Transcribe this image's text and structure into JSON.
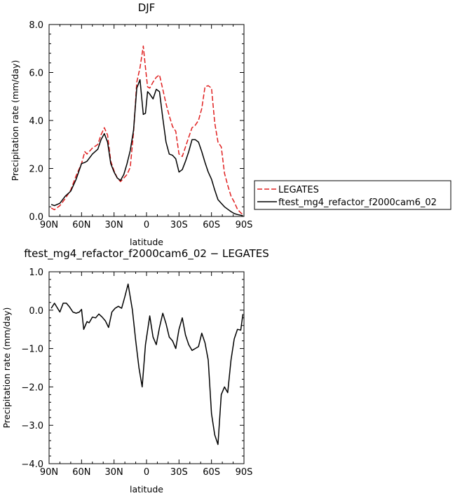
{
  "chart_data": [
    {
      "type": "line",
      "title": "DJF",
      "xlabel": "latitude",
      "ylabel": "Precipitation rate  (mm/day)",
      "xlim": [
        90,
        -90
      ],
      "ylim": [
        0,
        8
      ],
      "x_ticks": [
        90,
        60,
        30,
        0,
        -30,
        -60,
        -90
      ],
      "x_tick_labels": [
        "90N",
        "60N",
        "30N",
        "0",
        "30S",
        "60S",
        "90S"
      ],
      "y_ticks": [
        0,
        2,
        4,
        6,
        8
      ],
      "y_tick_labels": [
        "0.0",
        "2.0",
        "4.0",
        "6.0",
        "8.0"
      ],
      "legend": "right",
      "grid": false,
      "series": [
        {
          "name": "LEGATES",
          "color": "#e02020",
          "dash": true,
          "x": [
            88,
            85,
            80,
            75,
            70,
            65,
            60,
            57,
            55,
            50,
            45,
            42,
            39,
            36,
            33,
            30,
            27,
            24,
            21,
            18,
            15,
            12,
            9,
            6,
            3,
            1,
            -1,
            -3,
            -6,
            -9,
            -12,
            -15,
            -18,
            -21,
            -24,
            -27,
            -30,
            -33,
            -36,
            -39,
            -42,
            -45,
            -48,
            -51,
            -54,
            -57,
            -60,
            -63,
            -66,
            -69,
            -72,
            -75,
            -78,
            -81,
            -84,
            -87,
            -89
          ],
          "y": [
            0.35,
            0.28,
            0.45,
            0.75,
            1.1,
            1.7,
            2.2,
            2.7,
            2.6,
            2.85,
            3.0,
            3.4,
            3.7,
            3.4,
            2.3,
            1.9,
            1.6,
            1.45,
            1.6,
            1.75,
            2.05,
            3.5,
            5.6,
            6.2,
            7.1,
            6.2,
            5.4,
            5.35,
            5.6,
            5.8,
            5.9,
            5.3,
            4.7,
            4.2,
            3.75,
            3.55,
            2.6,
            2.5,
            2.9,
            3.3,
            3.7,
            3.8,
            4.0,
            4.5,
            5.4,
            5.45,
            5.35,
            3.9,
            3.1,
            2.9,
            1.8,
            1.3,
            0.85,
            0.6,
            0.3,
            0.15,
            0.08
          ]
        },
        {
          "name": "ftest_mg4_refactor_f2000cam6_02",
          "color": "#000000",
          "dash": false,
          "x": [
            88,
            85,
            80,
            75,
            70,
            65,
            60,
            57,
            55,
            50,
            45,
            42,
            39,
            36,
            33,
            30,
            27,
            24,
            21,
            18,
            15,
            12,
            9,
            6,
            3,
            1,
            -1,
            -3,
            -6,
            -9,
            -12,
            -15,
            -18,
            -21,
            -24,
            -27,
            -30,
            -33,
            -36,
            -39,
            -42,
            -45,
            -48,
            -51,
            -54,
            -57,
            -60,
            -63,
            -66,
            -69,
            -72,
            -75,
            -78,
            -81,
            -84,
            -87,
            -89
          ],
          "y": [
            0.5,
            0.45,
            0.55,
            0.85,
            1.05,
            1.55,
            2.2,
            2.25,
            2.3,
            2.6,
            2.8,
            3.2,
            3.45,
            3.1,
            2.2,
            1.85,
            1.6,
            1.5,
            1.75,
            2.2,
            2.75,
            3.6,
            5.35,
            5.7,
            4.25,
            4.3,
            5.2,
            5.1,
            4.9,
            5.3,
            5.2,
            4.1,
            3.1,
            2.6,
            2.55,
            2.4,
            1.85,
            1.95,
            2.3,
            2.7,
            3.2,
            3.2,
            3.1,
            2.7,
            2.25,
            1.85,
            1.55,
            1.1,
            0.7,
            0.55,
            0.4,
            0.3,
            0.2,
            0.12,
            0.08,
            0.05,
            0.03
          ]
        }
      ]
    },
    {
      "type": "line",
      "title": "ftest_mg4_refactor_f2000cam6_02 − LEGATES",
      "xlabel": "latitude",
      "ylabel": "Precipitation rate  (mm/day)",
      "xlim": [
        90,
        -90
      ],
      "ylim": [
        -4,
        1
      ],
      "x_ticks": [
        90,
        60,
        30,
        0,
        -30,
        -60,
        -90
      ],
      "x_tick_labels": [
        "90N",
        "60N",
        "30N",
        "0",
        "30S",
        "60S",
        "90S"
      ],
      "y_ticks": [
        -4,
        -3,
        -2,
        -1,
        0,
        1
      ],
      "y_tick_labels": [
        "−4.0",
        "−3.0",
        "−2.0",
        "−1.0",
        "0.0",
        "1.0"
      ],
      "grid": false,
      "series": [
        {
          "color": "#000000",
          "dash": false,
          "x": [
            88,
            85,
            80,
            77,
            74,
            71,
            68,
            65,
            62,
            60,
            58,
            55,
            53,
            50,
            47,
            44,
            41,
            38,
            35,
            32,
            29,
            26,
            23,
            20,
            17,
            13,
            10,
            7,
            4,
            1,
            -3,
            -6,
            -9,
            -12,
            -15,
            -18,
            -21,
            -24,
            -27,
            -30,
            -33,
            -36,
            -39,
            -42,
            -45,
            -48,
            -51,
            -54,
            -57,
            -60,
            -63,
            -66,
            -69,
            -72,
            -75,
            -78,
            -81,
            -84,
            -87,
            -89
          ],
          "y": [
            0.05,
            0.18,
            -0.05,
            0.18,
            0.18,
            0.08,
            -0.05,
            -0.08,
            -0.05,
            0.02,
            -0.5,
            -0.3,
            -0.33,
            -0.18,
            -0.2,
            -0.1,
            -0.18,
            -0.28,
            -0.45,
            -0.05,
            0.05,
            0.1,
            0.05,
            0.35,
            0.68,
            0.0,
            -0.8,
            -1.5,
            -2.0,
            -0.9,
            -0.15,
            -0.7,
            -0.9,
            -0.45,
            -0.08,
            -0.35,
            -0.7,
            -0.8,
            -1.0,
            -0.5,
            -0.2,
            -0.65,
            -0.9,
            -1.05,
            -1.0,
            -0.95,
            -0.6,
            -0.85,
            -1.3,
            -2.7,
            -3.25,
            -3.5,
            -2.2,
            -2.0,
            -2.15,
            -1.3,
            -0.75,
            -0.5,
            -0.52,
            -0.1
          ]
        }
      ]
    }
  ]
}
